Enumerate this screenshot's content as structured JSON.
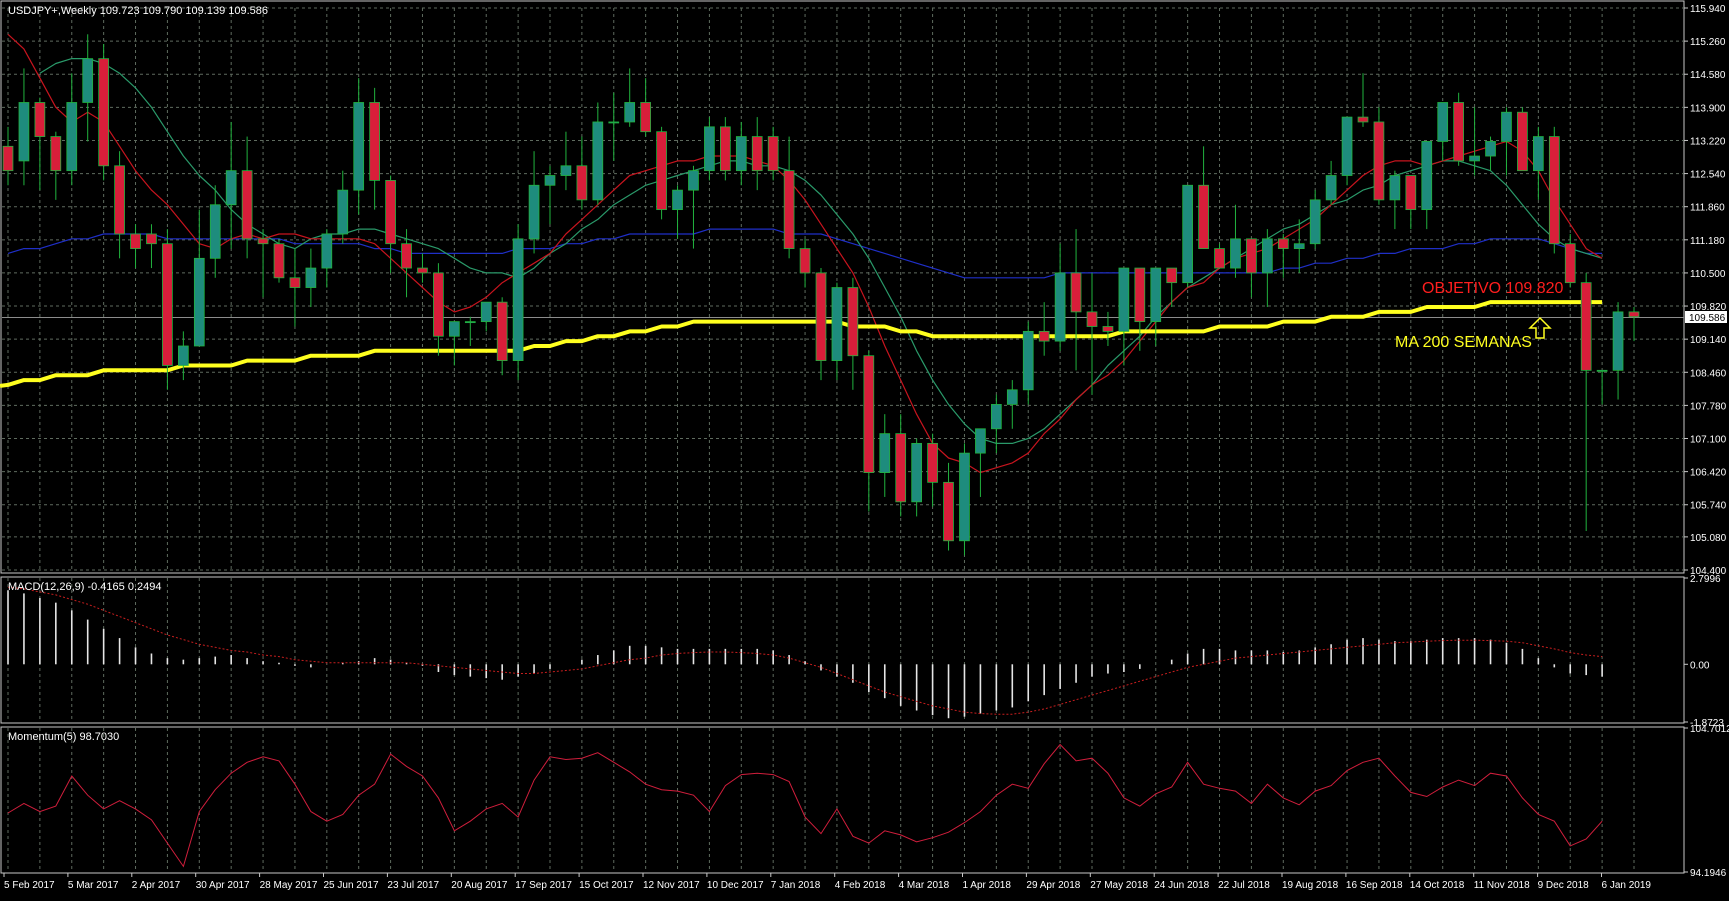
{
  "chart_data": {
    "type": "candlestick",
    "symbol_header": "USDJPY+,Weekly  109.723 109.790 109.139 109.586",
    "current_price_label": "109.586",
    "price_axis": {
      "ylim": [
        104.4,
        115.94
      ],
      "tick_labels": [
        "115.940",
        "115.260",
        "114.580",
        "113.900",
        "113.220",
        "112.540",
        "111.860",
        "111.180",
        "110.500",
        "109.820",
        "109.140",
        "108.460",
        "107.780",
        "107.100",
        "106.420",
        "105.740",
        "105.080",
        "104.400"
      ]
    },
    "x_tick_labels": [
      "5 Feb 2017",
      "5 Mar 2017",
      "2 Apr 2017",
      "30 Apr 2017",
      "28 May 2017",
      "25 Jun 2017",
      "23 Jul 2017",
      "20 Aug 2017",
      "17 Sep 2017",
      "15 Oct 2017",
      "12 Nov 2017",
      "10 Dec 2017",
      "7 Jan 2018",
      "4 Feb 2018",
      "4 Mar 2018",
      "1 Apr 2018",
      "29 Apr 2018",
      "27 May 2018",
      "24 Jun 2018",
      "22 Jul 2018",
      "19 Aug 2018",
      "16 Sep 2018",
      "14 Oct 2018",
      "11 Nov 2018",
      "9 Dec 2018",
      "6 Jan 2019"
    ],
    "colors": {
      "background": "#000000",
      "grid": "#5f6b5f",
      "axis_text": "#ffffff",
      "bull": "#1e8c7d",
      "bear": "#d81e3a",
      "wick": "#21b33e",
      "ma_fast": "#c8141e",
      "ma_mid": "#2a9a6a",
      "ma_slow": "#1f2fc8",
      "ma_200": "#ffff1f",
      "macd_signal": "#c81e1e",
      "momentum": "#d01e3c",
      "objective_text": "#ff1e1e",
      "ma200_text": "#ffff1f",
      "current_price_line": "#8c8c8c"
    },
    "candles": [
      [
        113.1,
        113.5,
        112.3,
        112.6
      ],
      [
        112.8,
        114.7,
        112.3,
        114.0
      ],
      [
        114.0,
        114.1,
        112.2,
        113.3
      ],
      [
        113.3,
        113.4,
        112.0,
        112.6
      ],
      [
        112.6,
        114.6,
        112.3,
        114.0
      ],
      [
        114.0,
        115.4,
        113.2,
        114.9
      ],
      [
        114.9,
        115.2,
        112.4,
        112.7
      ],
      [
        112.7,
        113.0,
        110.8,
        111.3
      ],
      [
        111.3,
        111.5,
        110.6,
        111.0
      ],
      [
        111.3,
        111.5,
        110.6,
        111.1
      ],
      [
        111.1,
        111.4,
        108.1,
        108.6
      ],
      [
        108.6,
        109.3,
        108.3,
        109.0
      ],
      [
        109.0,
        111.8,
        109.0,
        110.8
      ],
      [
        110.8,
        112.3,
        110.4,
        111.9
      ],
      [
        111.9,
        113.6,
        111.0,
        112.6
      ],
      [
        112.6,
        113.3,
        110.8,
        111.2
      ],
      [
        111.2,
        111.4,
        110.0,
        111.1
      ],
      [
        111.1,
        111.2,
        110.3,
        110.4
      ],
      [
        110.4,
        111.0,
        109.4,
        110.2
      ],
      [
        110.2,
        111.0,
        109.8,
        110.6
      ],
      [
        110.6,
        111.4,
        110.2,
        111.3
      ],
      [
        111.3,
        112.6,
        111.1,
        112.2
      ],
      [
        112.2,
        114.5,
        111.7,
        114.0
      ],
      [
        114.0,
        114.3,
        111.8,
        112.4
      ],
      [
        112.4,
        112.5,
        110.5,
        111.1
      ],
      [
        111.1,
        111.4,
        110.0,
        110.6
      ],
      [
        110.6,
        110.9,
        110.3,
        110.5
      ],
      [
        110.5,
        110.7,
        108.8,
        109.2
      ],
      [
        109.2,
        109.5,
        108.6,
        109.5
      ],
      [
        109.5,
        109.6,
        109.0,
        109.5
      ],
      [
        109.5,
        109.8,
        109.3,
        109.9
      ],
      [
        109.9,
        110.0,
        108.4,
        108.7
      ],
      [
        108.7,
        111.5,
        108.3,
        111.2
      ],
      [
        111.2,
        113.0,
        110.9,
        112.3
      ],
      [
        112.3,
        112.7,
        111.5,
        112.5
      ],
      [
        112.5,
        113.4,
        112.2,
        112.7
      ],
      [
        112.7,
        113.3,
        111.8,
        112.0
      ],
      [
        112.0,
        114.0,
        111.9,
        113.6
      ],
      [
        113.6,
        114.2,
        112.8,
        113.6
      ],
      [
        113.6,
        114.7,
        113.5,
        114.0
      ],
      [
        114.0,
        114.5,
        113.3,
        113.4
      ],
      [
        113.4,
        113.5,
        111.6,
        111.8
      ],
      [
        111.8,
        112.3,
        111.2,
        112.2
      ],
      [
        112.2,
        112.7,
        111.0,
        112.6
      ],
      [
        112.6,
        113.7,
        112.4,
        113.5
      ],
      [
        113.5,
        113.7,
        112.4,
        112.6
      ],
      [
        112.6,
        113.6,
        112.3,
        113.3
      ],
      [
        113.3,
        113.7,
        112.2,
        112.6
      ],
      [
        113.3,
        113.5,
        112.4,
        112.6
      ],
      [
        112.6,
        113.3,
        110.8,
        111.0
      ],
      [
        111.0,
        111.2,
        110.2,
        110.5
      ],
      [
        110.5,
        110.6,
        108.3,
        108.7
      ],
      [
        108.7,
        110.3,
        108.3,
        110.2
      ],
      [
        110.2,
        110.4,
        108.1,
        108.8
      ],
      [
        108.8,
        108.9,
        105.6,
        106.4
      ],
      [
        106.4,
        107.6,
        105.9,
        107.2
      ],
      [
        107.2,
        107.6,
        105.5,
        105.8
      ],
      [
        105.8,
        107.1,
        105.5,
        107.0
      ],
      [
        107.0,
        107.2,
        105.7,
        106.2
      ],
      [
        106.2,
        106.6,
        104.8,
        105.0
      ],
      [
        105.0,
        107.0,
        104.7,
        106.8
      ],
      [
        106.8,
        107.3,
        105.9,
        107.3
      ],
      [
        107.3,
        108.0,
        106.8,
        107.8
      ],
      [
        107.8,
        108.3,
        107.3,
        108.1
      ],
      [
        108.1,
        109.5,
        107.8,
        109.3
      ],
      [
        109.3,
        109.9,
        108.8,
        109.1
      ],
      [
        109.1,
        111.1,
        108.9,
        110.5
      ],
      [
        110.5,
        111.4,
        108.5,
        109.7
      ],
      [
        109.7,
        110.5,
        108.0,
        109.4
      ],
      [
        109.4,
        109.7,
        109.0,
        109.3
      ],
      [
        109.3,
        110.5,
        108.6,
        110.6
      ],
      [
        110.6,
        110.6,
        108.9,
        109.5
      ],
      [
        109.5,
        110.6,
        109.0,
        110.6
      ],
      [
        110.6,
        110.6,
        109.8,
        110.3
      ],
      [
        110.3,
        112.3,
        110.2,
        112.3
      ],
      [
        112.3,
        113.1,
        111.0,
        111.0
      ],
      [
        111.0,
        111.1,
        110.6,
        110.6
      ],
      [
        110.6,
        111.9,
        110.4,
        111.2
      ],
      [
        111.2,
        111.2,
        110.0,
        110.5
      ],
      [
        110.5,
        111.4,
        109.8,
        111.2
      ],
      [
        111.2,
        111.3,
        110.4,
        111.0
      ],
      [
        111.0,
        111.6,
        110.5,
        111.1
      ],
      [
        111.1,
        112.2,
        111.0,
        112.0
      ],
      [
        112.0,
        112.8,
        111.9,
        112.5
      ],
      [
        112.5,
        113.7,
        112.3,
        113.7
      ],
      [
        113.7,
        114.6,
        113.5,
        113.6
      ],
      [
        113.6,
        113.9,
        111.9,
        112.0
      ],
      [
        112.0,
        112.6,
        111.4,
        112.5
      ],
      [
        112.5,
        112.5,
        111.4,
        111.8
      ],
      [
        111.8,
        113.2,
        111.4,
        113.2
      ],
      [
        113.2,
        114.0,
        112.8,
        114.0
      ],
      [
        114.0,
        114.2,
        112.7,
        112.8
      ],
      [
        112.8,
        113.9,
        112.5,
        112.9
      ],
      [
        112.9,
        113.3,
        112.6,
        113.2
      ],
      [
        113.2,
        113.9,
        112.5,
        113.8
      ],
      [
        113.8,
        113.9,
        112.6,
        112.6
      ],
      [
        112.6,
        113.5,
        112.0,
        113.3
      ],
      [
        113.3,
        113.5,
        110.9,
        111.1
      ],
      [
        111.1,
        111.3,
        110.2,
        110.3
      ],
      [
        110.3,
        110.5,
        105.2,
        108.5
      ],
      [
        108.5,
        108.5,
        107.8,
        108.5
      ],
      [
        108.5,
        109.9,
        107.9,
        109.7
      ],
      [
        109.7,
        109.8,
        109.1,
        109.6
      ]
    ],
    "ma_fast": [
      115.4,
      115.1,
      114.5,
      113.9,
      113.6,
      113.8,
      113.6,
      113.1,
      112.6,
      112.2,
      111.9,
      111.5,
      111.1,
      111.0,
      111.2,
      111.3,
      111.2,
      111.3,
      111.3,
      111.2,
      111.2,
      111.2,
      111.2,
      111.1,
      110.8,
      110.5,
      110.2,
      109.9,
      109.7,
      109.8,
      110.0,
      110.3,
      110.5,
      110.7,
      110.9,
      111.3,
      111.6,
      111.9,
      112.2,
      112.5,
      112.6,
      112.7,
      112.8,
      112.8,
      112.9,
      112.9,
      112.9,
      112.8,
      112.7,
      112.4,
      112.0,
      111.5,
      111.0,
      110.5,
      109.8,
      109.0,
      108.3,
      107.6,
      107.0,
      106.7,
      106.6,
      106.4,
      106.5,
      106.6,
      106.8,
      107.2,
      107.5,
      107.9,
      108.2,
      108.4,
      108.7,
      109.1,
      109.5,
      109.9,
      110.2,
      110.3,
      110.6,
      110.8,
      110.9,
      111.0,
      111.2,
      111.4,
      111.6,
      111.9,
      112.2,
      112.5,
      112.7,
      112.8,
      112.8,
      112.7,
      112.8,
      112.9,
      113.0,
      113.1,
      113.2,
      113.0,
      112.6,
      112.0,
      111.5,
      111.0,
      110.8
    ],
    "ma_mid": [
      null,
      null,
      114.6,
      114.8,
      114.9,
      114.9,
      114.8,
      114.6,
      114.3,
      113.9,
      113.4,
      112.9,
      112.5,
      112.2,
      111.8,
      111.5,
      111.3,
      111.1,
      111.0,
      111.2,
      111.3,
      111.3,
      111.4,
      111.4,
      111.3,
      111.2,
      111.1,
      111.0,
      110.8,
      110.6,
      110.5,
      110.5,
      110.4,
      110.6,
      110.9,
      111.1,
      111.4,
      111.6,
      111.9,
      112.1,
      112.3,
      112.4,
      112.5,
      112.6,
      112.7,
      112.8,
      112.8,
      112.7,
      112.7,
      112.6,
      112.4,
      112.1,
      111.7,
      111.3,
      110.8,
      110.2,
      109.6,
      108.9,
      108.3,
      107.8,
      107.4,
      107.1,
      107.0,
      107.0,
      107.1,
      107.3,
      107.6,
      107.9,
      108.2,
      108.6,
      108.9,
      109.2,
      109.6,
      109.9,
      110.2,
      110.4,
      110.6,
      110.8,
      111.0,
      111.2,
      111.4,
      111.5,
      111.7,
      111.9,
      112.0,
      112.2,
      112.3,
      112.5,
      112.6,
      112.7,
      112.8,
      112.8,
      112.7,
      112.6,
      112.3,
      111.9,
      111.5,
      111.2,
      111.0,
      110.9,
      110.8
    ],
    "ma_slow": [
      110.9,
      111.0,
      111.0,
      111.1,
      111.2,
      111.2,
      111.3,
      111.3,
      111.3,
      111.3,
      111.2,
      111.2,
      111.2,
      111.2,
      111.2,
      111.2,
      111.2,
      111.2,
      111.1,
      111.1,
      111.1,
      111.1,
      111.1,
      111.0,
      111.0,
      110.9,
      110.9,
      110.9,
      110.9,
      110.9,
      110.9,
      110.9,
      111.0,
      111.0,
      111.0,
      111.1,
      111.1,
      111.2,
      111.2,
      111.3,
      111.3,
      111.3,
      111.3,
      111.3,
      111.4,
      111.4,
      111.4,
      111.4,
      111.4,
      111.3,
      111.3,
      111.3,
      111.2,
      111.1,
      111.0,
      110.9,
      110.8,
      110.7,
      110.6,
      110.5,
      110.4,
      110.4,
      110.4,
      110.4,
      110.4,
      110.4,
      110.5,
      110.5,
      110.5,
      110.5,
      110.5,
      110.5,
      110.5,
      110.5,
      110.5,
      110.5,
      110.5,
      110.5,
      110.5,
      110.5,
      110.6,
      110.6,
      110.7,
      110.7,
      110.8,
      110.8,
      110.9,
      110.9,
      111.0,
      111.0,
      111.0,
      111.1,
      111.1,
      111.2,
      111.2,
      111.2,
      111.2,
      111.1,
      111.0,
      110.9,
      110.9
    ],
    "ma_200": [
      108.2,
      108.3,
      108.3,
      108.4,
      108.4,
      108.4,
      108.5,
      108.5,
      108.5,
      108.5,
      108.5,
      108.6,
      108.6,
      108.6,
      108.6,
      108.7,
      108.7,
      108.7,
      108.7,
      108.8,
      108.8,
      108.8,
      108.8,
      108.9,
      108.9,
      108.9,
      108.9,
      108.9,
      108.9,
      108.9,
      108.9,
      108.9,
      108.9,
      109.0,
      109.0,
      109.1,
      109.1,
      109.2,
      109.2,
      109.3,
      109.3,
      109.4,
      109.4,
      109.5,
      109.5,
      109.5,
      109.5,
      109.5,
      109.5,
      109.5,
      109.5,
      109.5,
      109.5,
      109.4,
      109.4,
      109.4,
      109.3,
      109.3,
      109.2,
      109.2,
      109.2,
      109.2,
      109.2,
      109.2,
      109.2,
      109.2,
      109.2,
      109.2,
      109.2,
      109.2,
      109.3,
      109.3,
      109.3,
      109.3,
      109.3,
      109.3,
      109.4,
      109.4,
      109.4,
      109.4,
      109.5,
      109.5,
      109.5,
      109.6,
      109.6,
      109.6,
      109.7,
      109.7,
      109.7,
      109.8,
      109.8,
      109.8,
      109.8,
      109.9,
      109.9,
      109.9,
      109.9,
      109.9,
      109.9,
      109.9,
      109.9
    ],
    "annotations": {
      "objective": "OBJETIVO 109.820",
      "ma200": "MA 200 SEMANAS"
    },
    "macd": {
      "header": "MACD(12,26,9) -0.4165 0.2494",
      "ylim": [
        -1.8723,
        2.7996
      ],
      "tick_labels": [
        "2.7996",
        "0.00",
        "-1.8723"
      ],
      "histogram": [
        2.4,
        2.3,
        2.15,
        2.0,
        1.75,
        1.45,
        1.15,
        0.85,
        0.55,
        0.35,
        0.2,
        0.15,
        0.2,
        0.25,
        0.3,
        0.2,
        0.1,
        0.05,
        -0.05,
        -0.1,
        0.0,
        0.05,
        0.1,
        0.2,
        0.15,
        0.05,
        -0.05,
        -0.25,
        -0.35,
        -0.4,
        -0.45,
        -0.5,
        -0.4,
        -0.3,
        -0.15,
        0.0,
        0.15,
        0.3,
        0.45,
        0.6,
        0.6,
        0.55,
        0.5,
        0.5,
        0.5,
        0.5,
        0.5,
        0.5,
        0.45,
        0.3,
        0.1,
        -0.2,
        -0.4,
        -0.6,
        -0.9,
        -1.1,
        -1.35,
        -1.5,
        -1.65,
        -1.75,
        -1.7,
        -1.6,
        -1.5,
        -1.4,
        -1.2,
        -1.0,
        -0.8,
        -0.6,
        -0.4,
        -0.3,
        -0.25,
        -0.15,
        0.0,
        0.15,
        0.35,
        0.5,
        0.5,
        0.45,
        0.45,
        0.45,
        0.4,
        0.45,
        0.55,
        0.65,
        0.8,
        0.85,
        0.8,
        0.75,
        0.75,
        0.8,
        0.85,
        0.85,
        0.85,
        0.8,
        0.7,
        0.5,
        0.2,
        -0.1,
        -0.3,
        -0.35,
        -0.4
      ],
      "signal": [
        2.5,
        2.45,
        2.35,
        2.25,
        2.1,
        1.95,
        1.75,
        1.55,
        1.35,
        1.15,
        0.95,
        0.8,
        0.65,
        0.55,
        0.45,
        0.4,
        0.3,
        0.25,
        0.15,
        0.1,
        0.05,
        0.05,
        0.05,
        0.05,
        0.05,
        0.05,
        0.0,
        -0.05,
        -0.1,
        -0.15,
        -0.2,
        -0.25,
        -0.3,
        -0.3,
        -0.25,
        -0.2,
        -0.15,
        -0.05,
        0.05,
        0.15,
        0.2,
        0.3,
        0.35,
        0.38,
        0.4,
        0.4,
        0.38,
        0.35,
        0.3,
        0.2,
        0.05,
        -0.1,
        -0.3,
        -0.5,
        -0.7,
        -0.9,
        -1.05,
        -1.2,
        -1.35,
        -1.45,
        -1.55,
        -1.6,
        -1.62,
        -1.62,
        -1.55,
        -1.45,
        -1.3,
        -1.15,
        -1.0,
        -0.85,
        -0.7,
        -0.55,
        -0.4,
        -0.25,
        -0.1,
        0.0,
        0.1,
        0.2,
        0.25,
        0.3,
        0.35,
        0.4,
        0.45,
        0.5,
        0.55,
        0.6,
        0.65,
        0.7,
        0.72,
        0.75,
        0.77,
        0.78,
        0.78,
        0.77,
        0.75,
        0.7,
        0.6,
        0.5,
        0.38,
        0.3,
        0.25
      ]
    },
    "momentum": {
      "header": "Momentum(5) 98.7030",
      "ylim": [
        94.1946,
        104.7012
      ],
      "tick_labels": [
        "104.7012",
        "94.1946"
      ],
      "values": [
        98.5,
        99.2,
        98.6,
        99.0,
        101.2,
        99.8,
        98.8,
        99.4,
        98.8,
        98.0,
        96.3,
        94.6,
        98.6,
        100.2,
        101.4,
        102.2,
        102.6,
        102.3,
        100.6,
        98.6,
        97.9,
        98.4,
        99.8,
        100.6,
        102.8,
        101.9,
        101.2,
        99.6,
        97.2,
        97.9,
        98.8,
        99.2,
        98.2,
        100.9,
        102.6,
        102.4,
        102.5,
        102.9,
        102.2,
        101.5,
        100.6,
        100.2,
        100.1,
        99.8,
        98.6,
        100.5,
        101.3,
        101.4,
        101.3,
        100.8,
        98.2,
        97.0,
        98.8,
        96.8,
        96.3,
        97.2,
        96.9,
        96.4,
        96.7,
        97.1,
        97.8,
        98.6,
        99.8,
        100.6,
        100.3,
        102.1,
        103.5,
        102.3,
        102.5,
        101.4,
        99.6,
        99.0,
        99.9,
        100.4,
        102.2,
        100.6,
        100.3,
        100.1,
        99.2,
        100.6,
        99.6,
        99.1,
        100.1,
        100.5,
        101.6,
        102.2,
        102.5,
        101.2,
        100.0,
        99.7,
        100.4,
        100.9,
        100.5,
        101.4,
        101.2,
        99.6,
        98.4,
        97.9,
        96.1,
        96.6,
        97.9
      ]
    }
  }
}
